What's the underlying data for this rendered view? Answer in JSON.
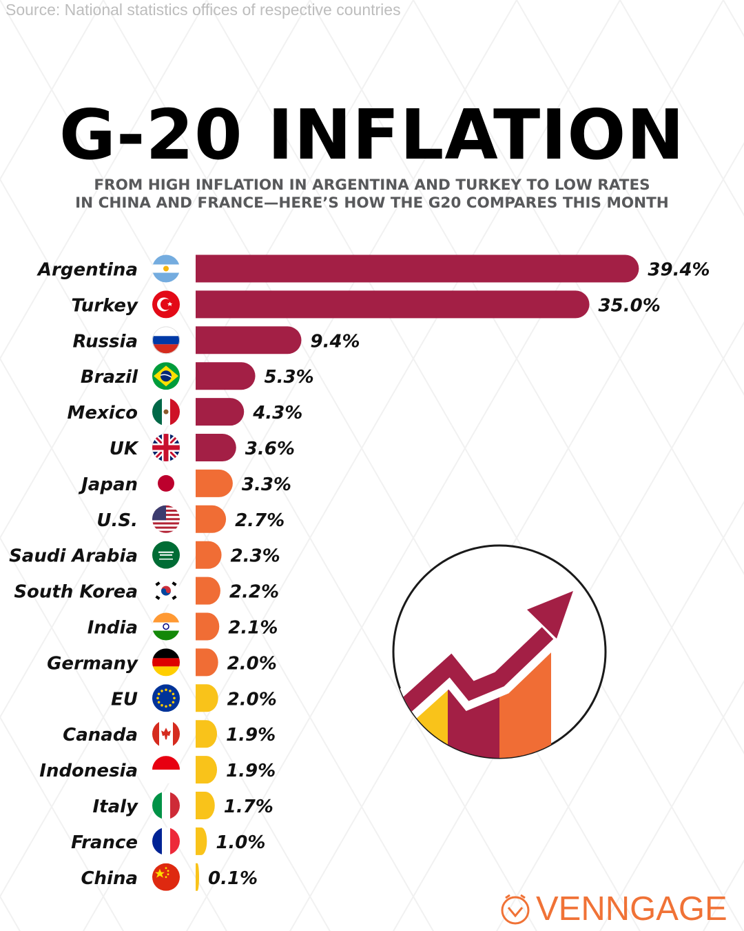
{
  "source": "Source: National statistics offices of respective countries",
  "title": "G-20 INFLATION",
  "subtitle_line1": "FROM HIGH INFLATION IN ARGENTINA AND TURKEY TO LOW RATES",
  "subtitle_line2": "IN CHINA AND FRANCE—HERE’S HOW THE G20 COMPARES THIS MONTH",
  "brand": "VENNGAGE",
  "colors": {
    "high": "#a31f45",
    "medium": "#f06d35",
    "low": "#f9c31a",
    "brand": "#f07236"
  },
  "chart_data": {
    "type": "bar",
    "orientation": "horizontal",
    "categories": [
      "Argentina",
      "Turkey",
      "Russia",
      "Brazil",
      "Mexico",
      "UK",
      "Japan",
      "U.S.",
      "Saudi Arabia",
      "South Korea",
      "India",
      "Germany",
      "EU",
      "Canada",
      "Indonesia",
      "Italy",
      "France",
      "China"
    ],
    "values": [
      39.4,
      35.0,
      9.4,
      5.3,
      4.3,
      3.6,
      3.3,
      2.7,
      2.3,
      2.2,
      2.1,
      2.0,
      2.0,
      1.9,
      1.9,
      1.7,
      1.0,
      0.1
    ],
    "labels": [
      "39.4%",
      "35.0%",
      "9.4%",
      "5.3%",
      "4.3%",
      "3.6%",
      "3.3%",
      "2.7%",
      "2.3%",
      "2.2%",
      "2.1%",
      "2.0%",
      "2.0%",
      "1.9%",
      "1.9%",
      "1.7%",
      "1.0%",
      "0.1%"
    ],
    "tiers": [
      "high",
      "high",
      "high",
      "high",
      "high",
      "high",
      "medium",
      "medium",
      "medium",
      "medium",
      "medium",
      "medium",
      "low",
      "low",
      "low",
      "low",
      "low",
      "low"
    ],
    "flags": [
      "argentina-flag",
      "turkey-flag",
      "russia-flag",
      "brazil-flag",
      "mexico-flag",
      "uk-flag",
      "japan-flag",
      "us-flag",
      "saudi-arabia-flag",
      "south-korea-flag",
      "india-flag",
      "germany-flag",
      "eu-flag",
      "canada-flag",
      "indonesia-flag",
      "italy-flag",
      "france-flag",
      "china-flag"
    ],
    "title": "G-20 INFLATION",
    "xlabel": "",
    "ylabel": "",
    "grid": false,
    "legend": false
  }
}
